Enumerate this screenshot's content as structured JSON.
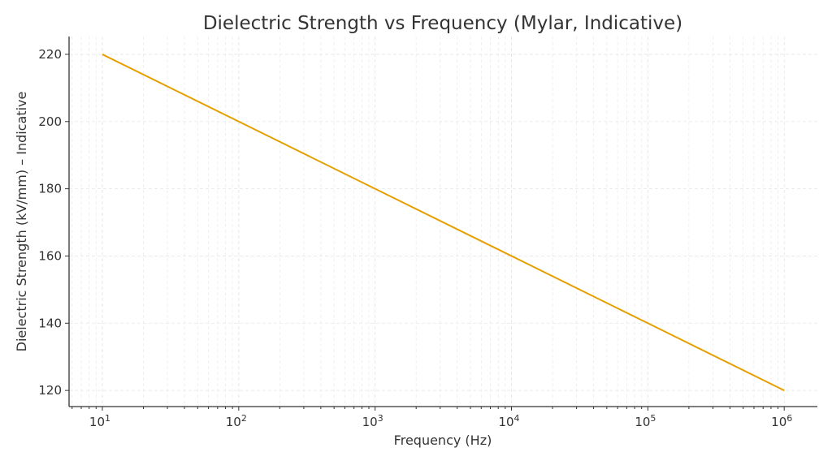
{
  "chart_data": {
    "type": "line",
    "title": "Dielectric Strength vs Frequency (Mylar, Indicative)",
    "xlabel": "Frequency (Hz)",
    "ylabel": "Dielectric Strength (kV/mm) – Indicative",
    "x_scale": "log",
    "xlim": [
      5.7,
      1750000
    ],
    "ylim": [
      115.2,
      225.3
    ],
    "x_ticks": [
      10,
      100,
      1000,
      10000,
      100000,
      1000000
    ],
    "x_tick_labels": [
      {
        "base": "10",
        "exp": "1"
      },
      {
        "base": "10",
        "exp": "2"
      },
      {
        "base": "10",
        "exp": "3"
      },
      {
        "base": "10",
        "exp": "4"
      },
      {
        "base": "10",
        "exp": "5"
      },
      {
        "base": "10",
        "exp": "6"
      }
    ],
    "y_ticks": [
      120,
      140,
      160,
      180,
      200,
      220
    ],
    "y_tick_labels": [
      "120",
      "140",
      "160",
      "180",
      "200",
      "220"
    ],
    "grid": true,
    "grid_minor_x": true,
    "line_color": "#E69F00",
    "series": [
      {
        "x": [
          10,
          100,
          1000,
          10000,
          100000,
          1000000
        ],
        "y": [
          220,
          200,
          180,
          160,
          140,
          120
        ]
      }
    ]
  }
}
